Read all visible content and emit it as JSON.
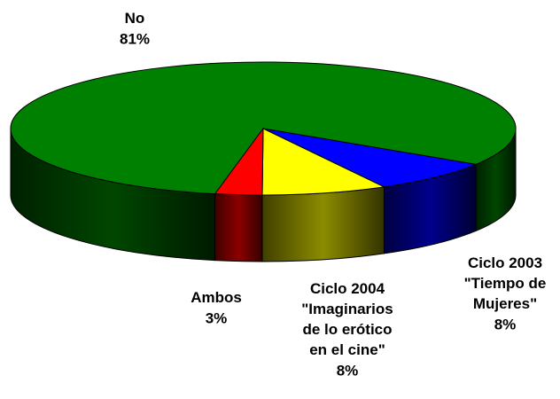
{
  "chart_data": {
    "type": "pie",
    "categories": [
      "No",
      "Ciclo 2003 \"Tiempo de Mujeres\"",
      "Ciclo 2004 \"Imaginarios de lo erótico en el cine\"",
      "Ambos"
    ],
    "values": [
      81,
      8,
      8,
      3
    ],
    "value_labels": [
      "81%",
      "8%",
      "8%",
      "3%"
    ],
    "colors": [
      "#008000",
      "#0000ff",
      "#ffff00",
      "#ff0000"
    ]
  }
}
